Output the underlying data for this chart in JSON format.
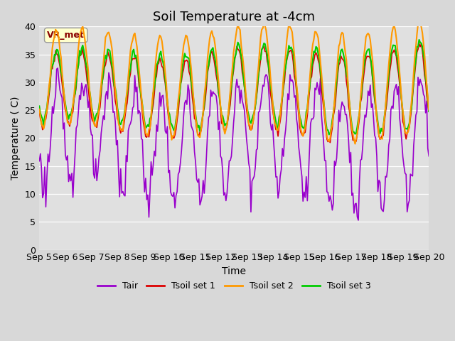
{
  "title": "Soil Temperature at -4cm",
  "xlabel": "Time",
  "ylabel": "Temperature ( C)",
  "ylim": [
    0,
    40
  ],
  "yticks": [
    0,
    5,
    10,
    15,
    20,
    25,
    30,
    35,
    40
  ],
  "x_labels": [
    "Sep 5",
    "Sep 6",
    "Sep 7",
    "Sep 8",
    "Sep 9",
    "Sep 10",
    "Sep 11",
    "Sep 12",
    "Sep 13",
    "Sep 14",
    "Sep 15",
    "Sep 16",
    "Sep 17",
    "Sep 18",
    "Sep 19",
    "Sep 20"
  ],
  "annotation_text": "VR_met",
  "colors": {
    "Tair": "#9900cc",
    "Tsoil1": "#dd0000",
    "Tsoil2": "#ff9900",
    "Tsoil3": "#00cc00"
  },
  "legend_labels": [
    "Tair",
    "Tsoil set 1",
    "Tsoil set 2",
    "Tsoil set 3"
  ],
  "title_fontsize": 13,
  "label_fontsize": 10,
  "tick_fontsize": 9
}
